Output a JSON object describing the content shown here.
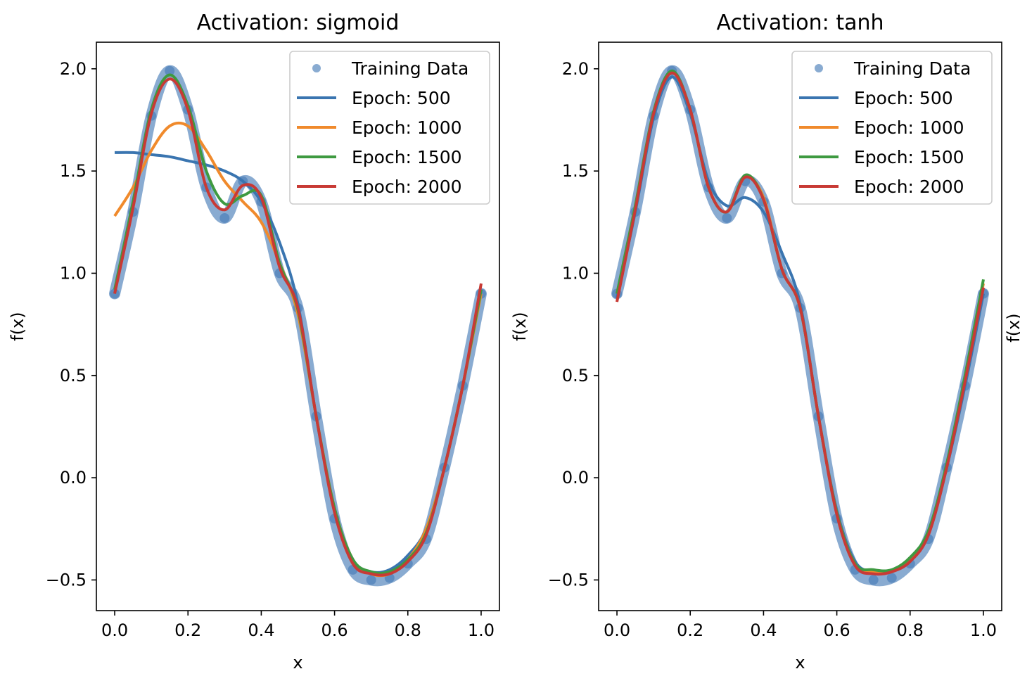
{
  "chart_data": [
    {
      "type": "line",
      "title": "Activation: sigmoid",
      "xlabel": "x",
      "ylabel": "f(x)",
      "xlim": [
        -0.05,
        1.05
      ],
      "ylim": [
        -0.65,
        2.13
      ],
      "xticks": [
        0.0,
        0.2,
        0.4,
        0.6,
        0.8,
        1.0
      ],
      "xtick_labels": [
        "0.0",
        "0.2",
        "0.4",
        "0.6",
        "0.8",
        "1.0"
      ],
      "yticks": [
        -0.5,
        0.0,
        0.5,
        1.0,
        1.5,
        2.0
      ],
      "ytick_labels": [
        "−0.5",
        "0.0",
        "0.5",
        "1.0",
        "1.5",
        "2.0"
      ],
      "legend_position": "upper right",
      "x": [
        0.0,
        0.05,
        0.1,
        0.15,
        0.2,
        0.25,
        0.3,
        0.35,
        0.4,
        0.45,
        0.5,
        0.55,
        0.6,
        0.65,
        0.7,
        0.75,
        0.8,
        0.85,
        0.9,
        0.95,
        1.0
      ],
      "scatter": {
        "name": "Training Data",
        "color": "#3b73b3",
        "y": [
          0.9,
          1.3,
          1.77,
          1.99,
          1.8,
          1.42,
          1.27,
          1.45,
          1.35,
          1.0,
          0.83,
          0.3,
          -0.2,
          -0.45,
          -0.5,
          -0.49,
          -0.42,
          -0.3,
          0.05,
          0.45,
          0.9
        ]
      },
      "series": [
        {
          "name": "Epoch: 500",
          "color": "#3a75b0",
          "y": [
            1.59,
            1.59,
            1.58,
            1.57,
            1.55,
            1.53,
            1.5,
            1.45,
            1.35,
            1.15,
            0.85,
            0.3,
            -0.15,
            -0.4,
            -0.46,
            -0.45,
            -0.38,
            -0.25,
            0.05,
            0.45,
            0.92
          ]
        },
        {
          "name": "Epoch: 1000",
          "color": "#f08a2c",
          "y": [
            1.28,
            1.42,
            1.6,
            1.72,
            1.72,
            1.6,
            1.45,
            1.35,
            1.25,
            1.05,
            0.8,
            0.3,
            -0.15,
            -0.4,
            -0.47,
            -0.47,
            -0.4,
            -0.25,
            0.05,
            0.45,
            0.9
          ]
        },
        {
          "name": "Epoch: 1500",
          "color": "#3e9a41",
          "y": [
            0.92,
            1.35,
            1.8,
            1.97,
            1.82,
            1.5,
            1.34,
            1.38,
            1.38,
            1.05,
            0.82,
            0.3,
            -0.15,
            -0.4,
            -0.46,
            -0.46,
            -0.4,
            -0.27,
            0.05,
            0.45,
            0.92
          ]
        },
        {
          "name": "Epoch: 2000",
          "color": "#c83a35",
          "y": [
            0.9,
            1.32,
            1.78,
            1.95,
            1.8,
            1.42,
            1.31,
            1.43,
            1.37,
            1.03,
            0.83,
            0.3,
            -0.17,
            -0.42,
            -0.47,
            -0.47,
            -0.41,
            -0.28,
            0.05,
            0.45,
            0.95
          ]
        }
      ]
    },
    {
      "type": "line",
      "title": "Activation: tanh",
      "xlabel": "x",
      "ylabel": "f(x)",
      "xlim": [
        -0.05,
        1.05
      ],
      "ylim": [
        -0.65,
        2.13
      ],
      "xticks": [
        0.0,
        0.2,
        0.4,
        0.6,
        0.8,
        1.0
      ],
      "xtick_labels": [
        "0.0",
        "0.2",
        "0.4",
        "0.6",
        "0.8",
        "1.0"
      ],
      "yticks": [
        -0.5,
        0.0,
        0.5,
        1.0,
        1.5,
        2.0
      ],
      "ytick_labels": [
        "−0.5",
        "0.0",
        "0.5",
        "1.0",
        "1.5",
        "2.0"
      ],
      "legend_position": "upper right",
      "x": [
        0.0,
        0.05,
        0.1,
        0.15,
        0.2,
        0.25,
        0.3,
        0.35,
        0.4,
        0.45,
        0.5,
        0.55,
        0.6,
        0.65,
        0.7,
        0.75,
        0.8,
        0.85,
        0.9,
        0.95,
        1.0
      ],
      "scatter": {
        "name": "Training Data",
        "color": "#3b73b3",
        "y": [
          0.9,
          1.3,
          1.77,
          1.99,
          1.8,
          1.42,
          1.27,
          1.45,
          1.35,
          1.0,
          0.83,
          0.3,
          -0.2,
          -0.45,
          -0.5,
          -0.49,
          -0.42,
          -0.3,
          0.05,
          0.45,
          0.9
        ]
      },
      "series": [
        {
          "name": "Epoch: 500",
          "color": "#3a75b0",
          "y": [
            0.88,
            1.3,
            1.76,
            1.96,
            1.78,
            1.45,
            1.33,
            1.37,
            1.3,
            1.1,
            0.85,
            0.3,
            -0.16,
            -0.41,
            -0.46,
            -0.46,
            -0.4,
            -0.27,
            0.05,
            0.45,
            0.9
          ]
        },
        {
          "name": "Epoch: 1000",
          "color": "#f08a2c",
          "y": [
            0.9,
            1.33,
            1.79,
            1.98,
            1.8,
            1.42,
            1.3,
            1.47,
            1.37,
            1.02,
            0.83,
            0.3,
            -0.17,
            -0.42,
            -0.46,
            -0.46,
            -0.4,
            -0.27,
            0.06,
            0.48,
            0.95
          ]
        },
        {
          "name": "Epoch: 1500",
          "color": "#3e9a41",
          "y": [
            0.9,
            1.33,
            1.79,
            1.99,
            1.8,
            1.42,
            1.3,
            1.48,
            1.36,
            1.02,
            0.83,
            0.3,
            -0.17,
            -0.42,
            -0.45,
            -0.45,
            -0.39,
            -0.26,
            0.07,
            0.5,
            0.97
          ]
        },
        {
          "name": "Epoch: 2000",
          "color": "#c83a35",
          "y": [
            0.86,
            1.31,
            1.78,
            1.98,
            1.8,
            1.42,
            1.3,
            1.47,
            1.36,
            1.02,
            0.83,
            0.3,
            -0.18,
            -0.43,
            -0.47,
            -0.46,
            -0.41,
            -0.28,
            0.05,
            0.47,
            0.93
          ]
        }
      ]
    }
  ],
  "partial_third_axis_label": "f(x)"
}
